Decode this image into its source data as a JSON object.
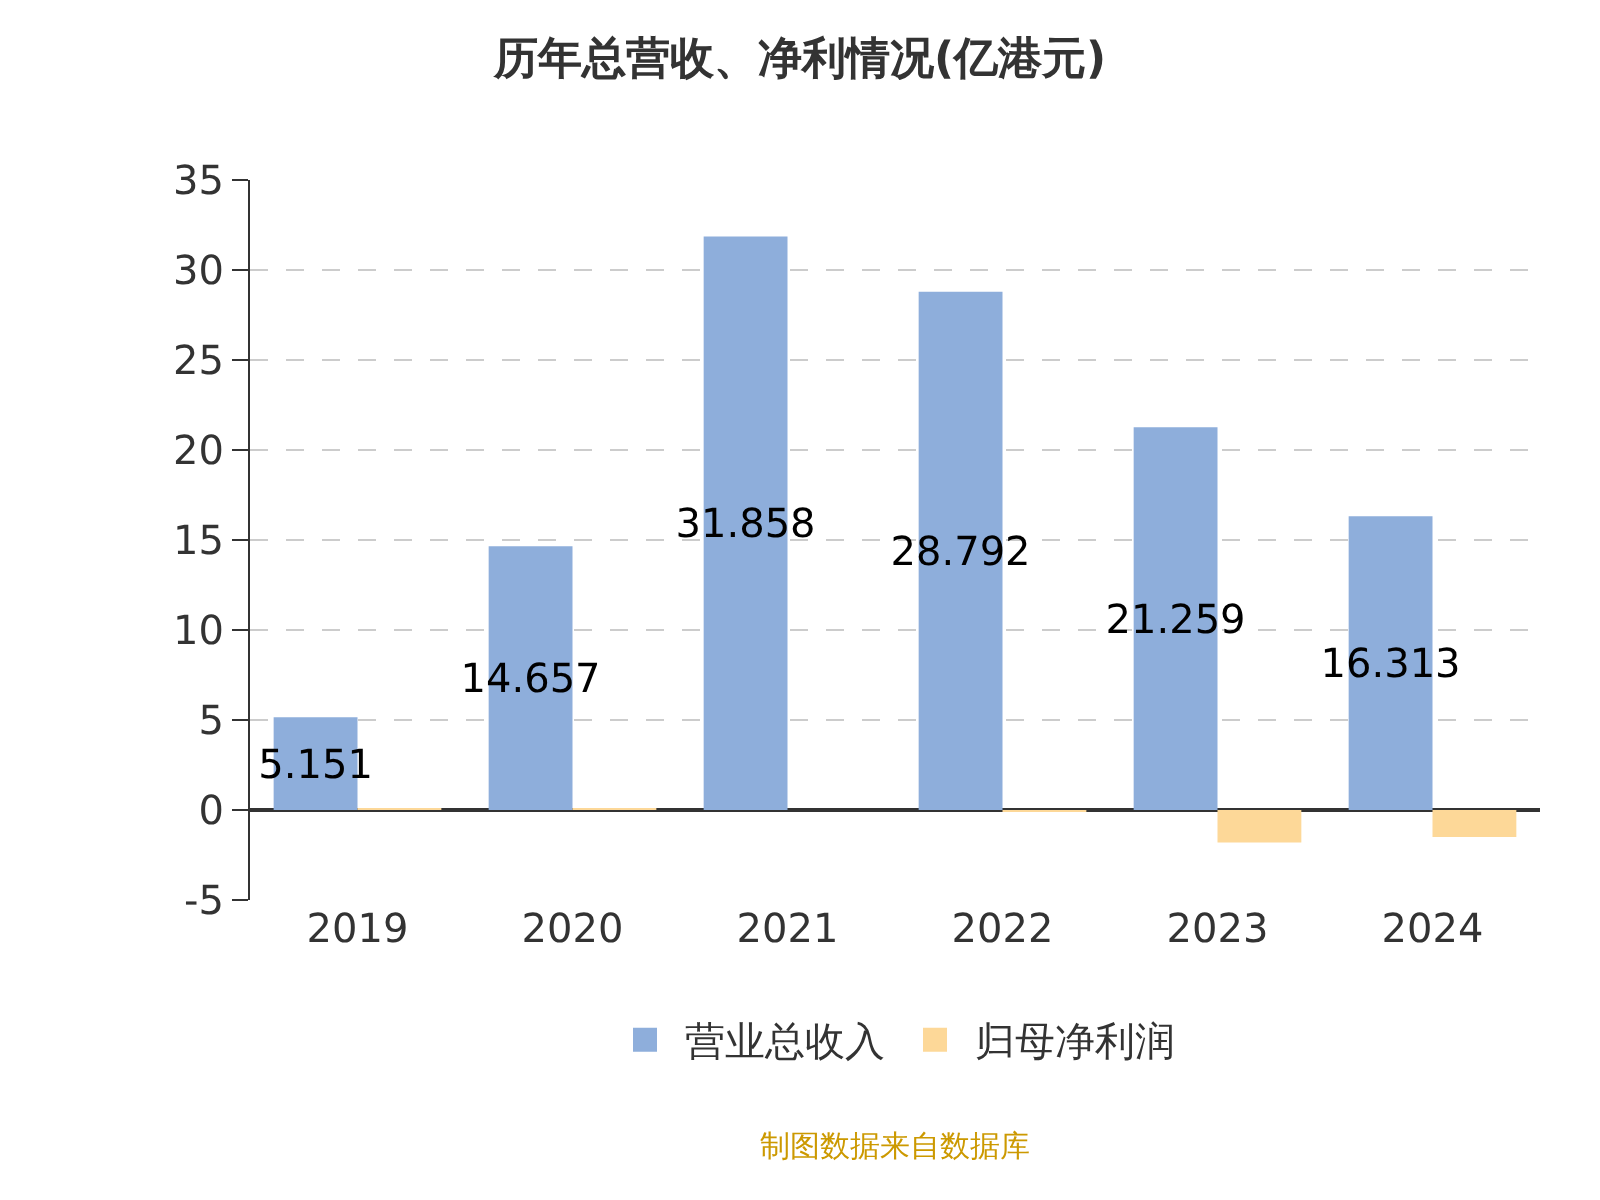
{
  "chart_data": {
    "type": "bar",
    "title": "历年总营收、净利情况(亿港元)",
    "categories": [
      "2019",
      "2020",
      "2021",
      "2022",
      "2023",
      "2024"
    ],
    "series": [
      {
        "name": "营业总收入",
        "color": "#8eaedb",
        "values": [
          5.151,
          14.657,
          31.858,
          28.792,
          21.259,
          16.313
        ],
        "value_labels": [
          "5.151",
          "14.657",
          "31.858",
          "28.792",
          "21.259",
          "16.313"
        ]
      },
      {
        "name": "归母净利润",
        "color": "#fdd898",
        "values": [
          0.1,
          0.1,
          0,
          -0.1,
          -1.8,
          -1.5
        ]
      }
    ],
    "ylim": [
      -5,
      35
    ],
    "yticks": [
      -5,
      0,
      5,
      10,
      15,
      20,
      25,
      30,
      35
    ],
    "grid": "y",
    "legend": "bottom",
    "annotations": [
      "制图数据来自数据库"
    ]
  }
}
